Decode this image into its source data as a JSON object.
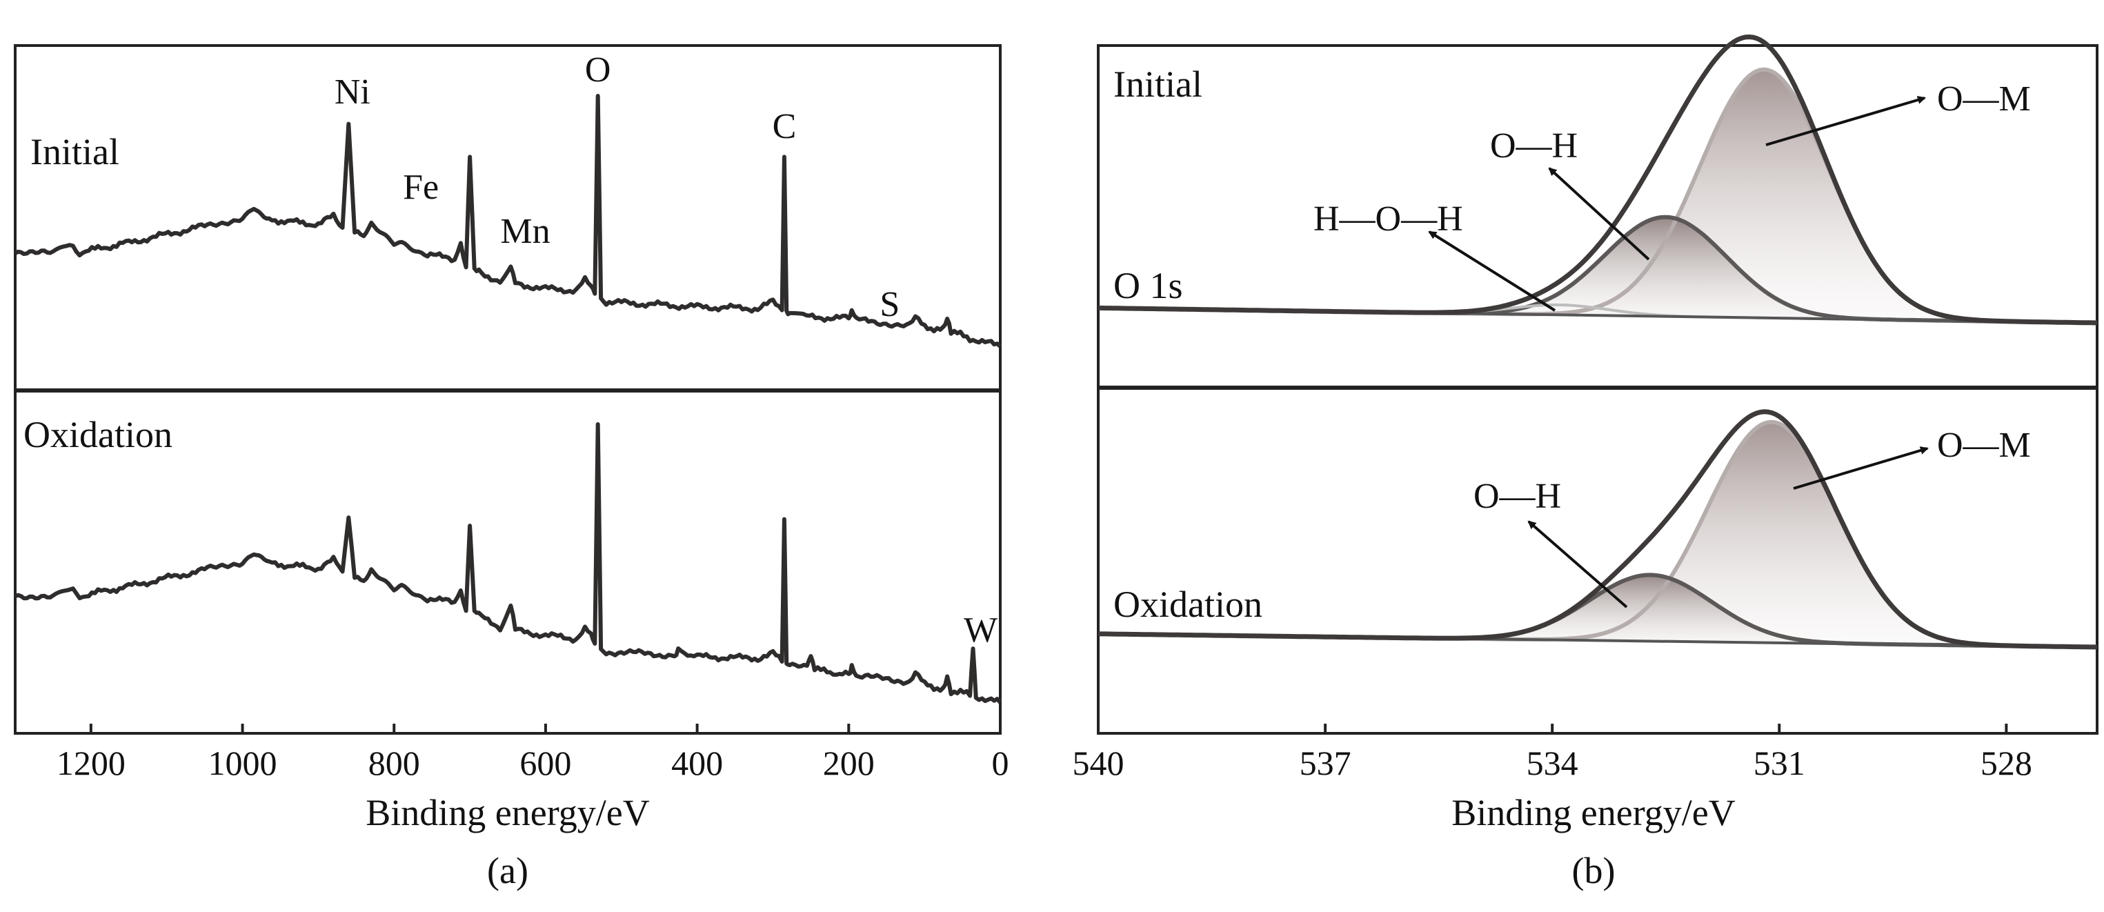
{
  "chart_data": [
    {
      "id": "a",
      "type": "line",
      "title": "",
      "caption": "(a)",
      "xlabel": "Binding energy/eV",
      "ylabel": "",
      "xlim": [
        1300,
        0
      ],
      "xticks": [
        "1200",
        "1000",
        "800",
        "600",
        "400",
        "200",
        "0"
      ],
      "xtick_values": [
        1200,
        1000,
        800,
        600,
        400,
        200,
        0
      ],
      "color": "#2f2c2c",
      "series": [
        {
          "name": "Initial",
          "label": "Initial",
          "x": [
            1300,
            1250,
            1228,
            1215,
            1150,
            1050,
            1000,
            985,
            975,
            965,
            900,
            880,
            868,
            860,
            852,
            840,
            830,
            800,
            790,
            760,
            720,
            712,
            705,
            700,
            694,
            688,
            680,
            660,
            646,
            640,
            600,
            560,
            548,
            540,
            535,
            531,
            527,
            520,
            400,
            320,
            300,
            288,
            285,
            282,
            278,
            260,
            200,
            196,
            190,
            170,
            120,
            112,
            100,
            75,
            70,
            65,
            40,
            0
          ],
          "y": [
            0.68,
            0.66,
            0.71,
            0.67,
            0.73,
            0.83,
            0.88,
            0.94,
            0.91,
            0.87,
            0.84,
            0.89,
            0.82,
            1.45,
            0.8,
            0.76,
            0.85,
            0.72,
            0.74,
            0.66,
            0.63,
            0.74,
            0.58,
            1.25,
            0.58,
            0.55,
            0.53,
            0.5,
            0.6,
            0.48,
            0.45,
            0.44,
            0.5,
            0.46,
            0.42,
            1.62,
            0.4,
            0.37,
            0.34,
            0.33,
            0.37,
            0.32,
            1.25,
            0.31,
            0.29,
            0.28,
            0.27,
            0.31,
            0.26,
            0.25,
            0.23,
            0.27,
            0.22,
            0.2,
            0.27,
            0.19,
            0.15,
            0.1
          ]
        },
        {
          "name": "Oxidation",
          "label": "Oxidation",
          "x": [
            1300,
            1250,
            1228,
            1215,
            1150,
            1050,
            1000,
            985,
            975,
            965,
            900,
            880,
            868,
            860,
            852,
            840,
            830,
            800,
            790,
            760,
            720,
            712,
            705,
            700,
            694,
            688,
            680,
            660,
            646,
            640,
            600,
            560,
            548,
            540,
            535,
            531,
            527,
            520,
            430,
            425,
            400,
            320,
            300,
            288,
            285,
            282,
            278,
            255,
            250,
            245,
            200,
            196,
            190,
            120,
            112,
            100,
            75,
            70,
            65,
            40,
            36,
            32,
            20,
            0
          ],
          "y": [
            0.68,
            0.66,
            0.71,
            0.67,
            0.73,
            0.83,
            0.88,
            0.94,
            0.91,
            0.87,
            0.84,
            0.89,
            0.82,
            1.15,
            0.8,
            0.76,
            0.84,
            0.72,
            0.74,
            0.66,
            0.63,
            0.72,
            0.58,
            1.1,
            0.58,
            0.55,
            0.53,
            0.48,
            0.62,
            0.46,
            0.43,
            0.41,
            0.47,
            0.43,
            0.38,
            1.72,
            0.36,
            0.33,
            0.31,
            0.34,
            0.3,
            0.29,
            0.32,
            0.27,
            1.14,
            0.26,
            0.24,
            0.23,
            0.32,
            0.22,
            0.19,
            0.23,
            0.18,
            0.15,
            0.2,
            0.13,
            0.1,
            0.17,
            0.09,
            0.07,
            0.35,
            0.06,
            0.04,
            0.02
          ]
        }
      ],
      "peak_labels": [
        {
          "name": "Ni",
          "text": "Ni",
          "x": 855
        },
        {
          "name": "Fe",
          "text": "Fe",
          "x": 710
        },
        {
          "name": "Mn",
          "text": "Mn",
          "x": 645
        },
        {
          "name": "O",
          "text": "O",
          "x": 531
        },
        {
          "name": "C",
          "text": "C",
          "x": 285
        },
        {
          "name": "S",
          "text": "S",
          "x": 164
        },
        {
          "name": "W",
          "text": "W",
          "x": 35
        }
      ]
    },
    {
      "id": "b",
      "type": "line",
      "title": "O 1s",
      "caption": "(b)",
      "xlabel": "Binding energy/eV",
      "ylabel": "",
      "xlim": [
        540,
        526.8
      ],
      "xticks": [
        "540",
        "537",
        "534",
        "531",
        "528"
      ],
      "xtick_values": [
        540,
        537,
        534,
        531,
        528
      ],
      "colors": {
        "envelope": "#3e3a39",
        "O-H": "#5c5858",
        "O-M": "#b5adac",
        "H-O-H": "#bdbdbd",
        "fill": "#b6a8a6"
      },
      "panels": [
        {
          "name": "Initial",
          "label": "Initial",
          "baseline": {
            "x": [
              540,
              526.8
            ],
            "y": [
              0.06,
              0.0
            ]
          },
          "components": [
            {
              "name": "O—M",
              "label": "O—M",
              "center": 531.2,
              "fwhm": 2.0,
              "height": 1.0
            },
            {
              "name": "O—H",
              "label": "O—H",
              "center": 532.5,
              "fwhm": 1.9,
              "height": 0.4
            },
            {
              "name": "H—O—H",
              "label": "H—O—H",
              "center": 533.9,
              "fwhm": 1.5,
              "height": 0.04
            }
          ]
        },
        {
          "name": "Oxidation",
          "label": "Oxidation",
          "baseline": {
            "x": [
              540,
              526.8
            ],
            "y": [
              0.06,
              0.0
            ]
          },
          "components": [
            {
              "name": "O—M",
              "label": "O—M",
              "center": 531.1,
              "fwhm": 2.0,
              "height": 1.0
            },
            {
              "name": "O—H",
              "label": "O—H",
              "center": 532.7,
              "fwhm": 1.9,
              "height": 0.3
            }
          ]
        }
      ]
    }
  ]
}
